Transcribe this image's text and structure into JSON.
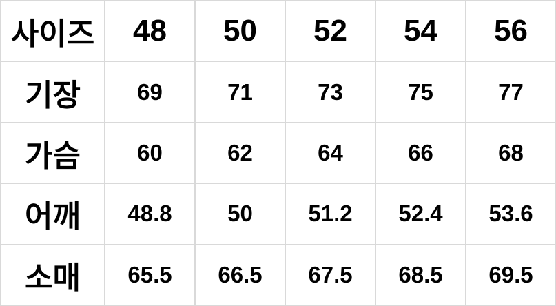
{
  "chart_data": {
    "type": "table",
    "title": "사이즈",
    "columns": [
      "48",
      "50",
      "52",
      "54",
      "56"
    ],
    "rows": [
      {
        "label": "기장",
        "values": [
          "69",
          "71",
          "73",
          "75",
          "77"
        ]
      },
      {
        "label": "가슴",
        "values": [
          "60",
          "62",
          "64",
          "66",
          "68"
        ]
      },
      {
        "label": "어깨",
        "values": [
          "48.8",
          "50",
          "51.2",
          "52.4",
          "53.6"
        ]
      },
      {
        "label": "소매",
        "values": [
          "65.5",
          "66.5",
          "67.5",
          "68.5",
          "69.5"
        ]
      }
    ],
    "layout": {
      "grid": true,
      "border_color": "#d9d9d9",
      "text_color": "#000000",
      "background_color": "#ffffff"
    }
  }
}
